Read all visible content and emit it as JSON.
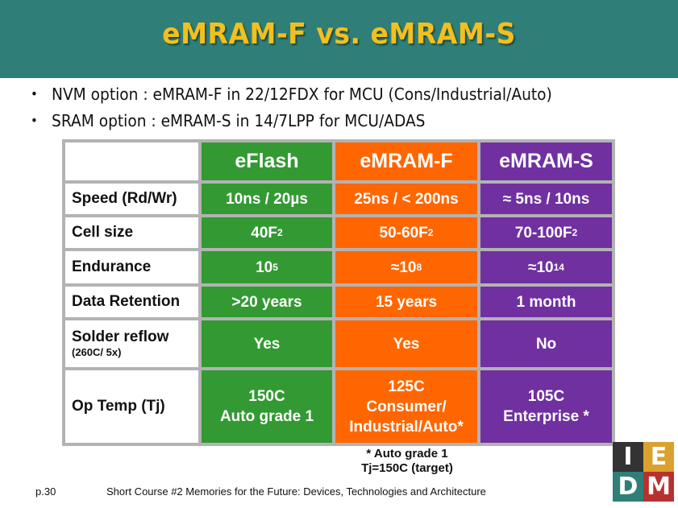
{
  "title": "eMRAM-F vs. eMRAM-S",
  "bullets": [
    "NVM option : eMRAM-F in 22/12FDX for MCU (Cons/Industrial/Auto)",
    "SRAM option : eMRAM-S in 14/7LPP for MCU/ADAS"
  ],
  "bullet_symbol": "•",
  "table": {
    "columns": [
      "eFlash",
      "eMRAM-F",
      "eMRAM-S"
    ],
    "column_colors": [
      "#339933",
      "#ff6600",
      "#7030a0"
    ],
    "rows": [
      {
        "label": "Speed (Rd/Wr)",
        "values": [
          "10ns / 20µs",
          "25ns / < 200ns",
          "≈ 5ns / 10ns"
        ]
      },
      {
        "label": "Cell size",
        "values": [
          "40F",
          "50-60F",
          "70-100F"
        ],
        "sup": [
          "2",
          "2",
          "2"
        ]
      },
      {
        "label": "Endurance",
        "values": [
          "10",
          "≈10",
          "≈10"
        ],
        "sup": [
          "5",
          "8",
          "14"
        ]
      },
      {
        "label": "Data Retention",
        "values": [
          ">20 years",
          "15 years",
          "1 month"
        ]
      },
      {
        "label": "Solder reflow",
        "sublabel": "(260C/ 5x)",
        "values": [
          "Yes",
          "Yes",
          "No"
        ]
      },
      {
        "label": "Op Temp (Tj)",
        "values": [
          [
            "150C",
            "Auto grade 1"
          ],
          [
            "125C",
            "Consumer/",
            "Industrial/Auto*"
          ],
          [
            "105C",
            "Enterprise *"
          ]
        ]
      }
    ]
  },
  "footnote": [
    "* Auto grade 1",
    "Tj=150C (target)"
  ],
  "footer": {
    "page": "p.30",
    "course": "Short Course #2 Memories for the Future: Devices, Technologies and Architecture"
  },
  "logo": {
    "letters": [
      "I",
      "E",
      "D",
      "M"
    ],
    "colors": [
      "#333333",
      "#d9a22e",
      "#2f7f78",
      "#b8312f"
    ]
  }
}
